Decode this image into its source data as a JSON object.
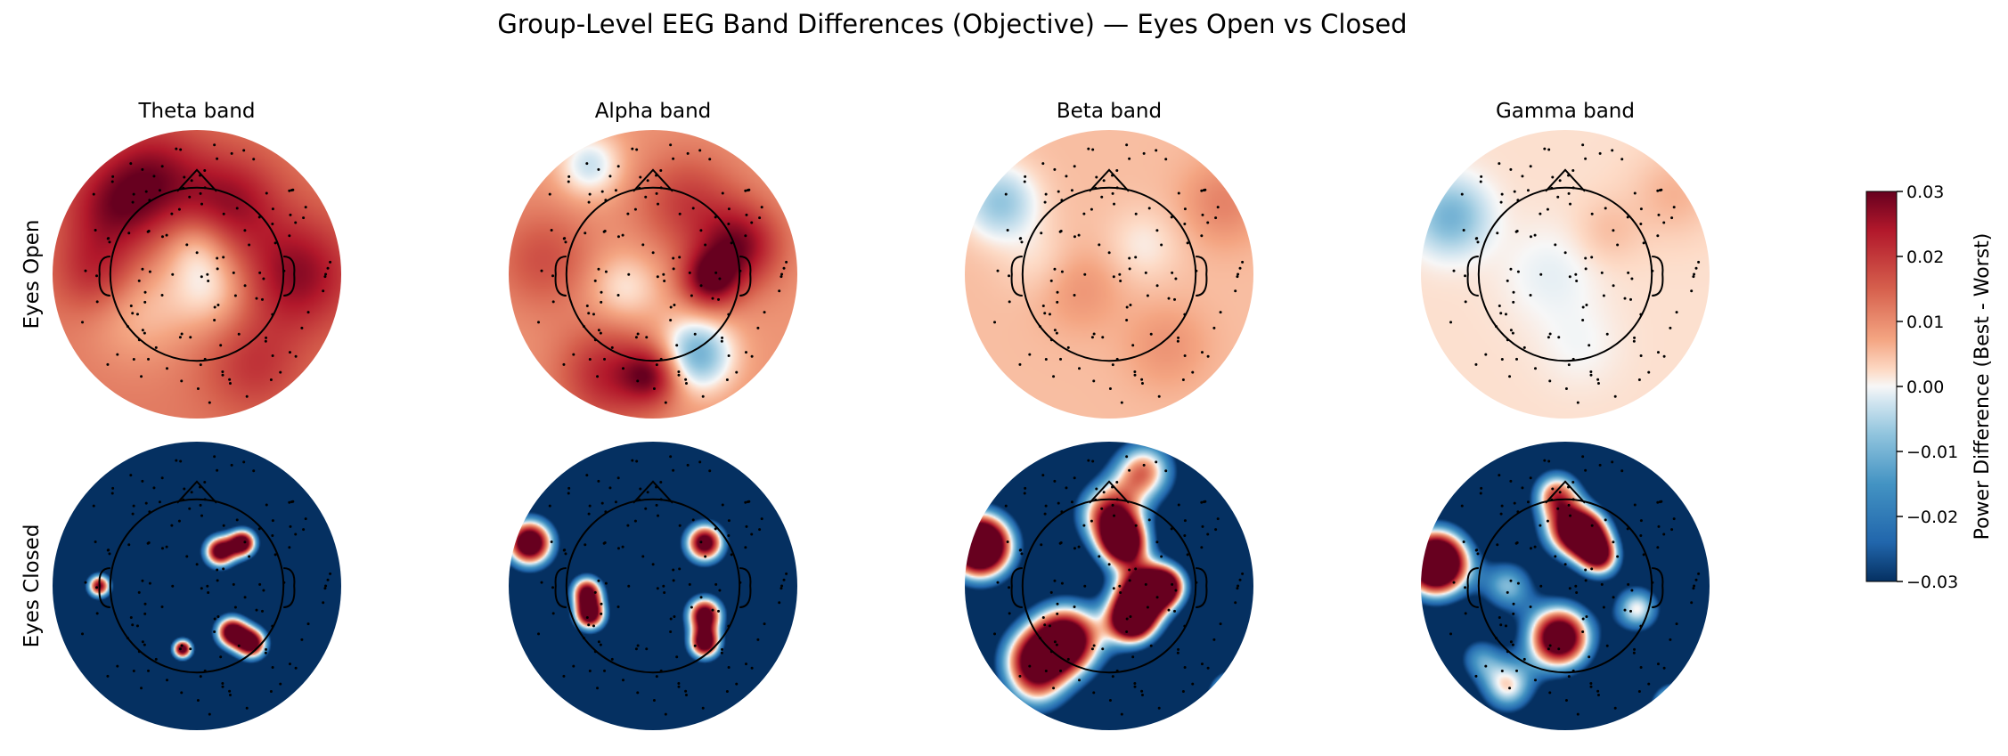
{
  "chart_data": {
    "type": "heatmap",
    "subtype": "eeg-topomap-grid",
    "title": "Group-Level EEG Band Differences (Objective) — Eyes Open vs Closed",
    "columns": [
      "Theta band",
      "Alpha band",
      "Beta band",
      "Gamma band"
    ],
    "rows": [
      "Eyes Open",
      "Eyes Closed"
    ],
    "colormap": "RdBu_r",
    "colors": {
      "low": "#0b3a6b",
      "mid": "#f7f7f7",
      "high": "#8a0b1f"
    },
    "colorbar": {
      "label": "Power Difference (Best - Worst)",
      "range": [
        -0.03,
        0.03
      ],
      "ticks": [
        {
          "value": 0.03,
          "label": "0.03"
        },
        {
          "value": 0.02,
          "label": "0.02"
        },
        {
          "value": 0.01,
          "label": "0.01"
        },
        {
          "value": 0.0,
          "label": "0.00"
        },
        {
          "value": -0.01,
          "label": "−0.01"
        },
        {
          "value": -0.02,
          "label": "−0.02"
        },
        {
          "value": -0.03,
          "label": "−0.03"
        }
      ]
    },
    "panels": [
      {
        "row": "Eyes Open",
        "band": "Theta band",
        "base": 0.012,
        "blobs": [
          [
            0.35,
            0.16,
            0.13,
            0.014
          ],
          [
            0.2,
            0.28,
            0.12,
            0.012
          ],
          [
            0.62,
            0.25,
            0.12,
            0.013
          ],
          [
            0.85,
            0.5,
            0.14,
            0.015
          ],
          [
            0.3,
            0.62,
            0.13,
            -0.007
          ],
          [
            0.55,
            0.55,
            0.1,
            -0.01
          ],
          [
            0.7,
            0.82,
            0.12,
            0.008
          ],
          [
            0.15,
            0.5,
            0.1,
            0.01
          ],
          [
            0.5,
            0.4,
            0.08,
            -0.008
          ]
        ]
      },
      {
        "row": "Eyes Open",
        "band": "Alpha band",
        "base": 0.009,
        "blobs": [
          [
            0.28,
            0.12,
            0.08,
            -0.012
          ],
          [
            0.62,
            0.25,
            0.12,
            0.01
          ],
          [
            0.8,
            0.4,
            0.1,
            0.018
          ],
          [
            0.7,
            0.52,
            0.07,
            0.02
          ],
          [
            0.65,
            0.78,
            0.09,
            -0.02
          ],
          [
            0.35,
            0.85,
            0.12,
            0.014
          ],
          [
            0.5,
            0.85,
            0.07,
            0.016
          ],
          [
            0.12,
            0.45,
            0.12,
            0.008
          ],
          [
            0.4,
            0.55,
            0.09,
            -0.008
          ]
        ]
      },
      {
        "row": "Eyes Open",
        "band": "Beta band",
        "base": 0.005,
        "blobs": [
          [
            0.12,
            0.25,
            0.09,
            -0.012
          ],
          [
            0.9,
            0.25,
            0.1,
            0.006
          ],
          [
            0.4,
            0.55,
            0.1,
            0.004
          ],
          [
            0.62,
            0.4,
            0.09,
            -0.004
          ],
          [
            0.25,
            0.45,
            0.09,
            -0.003
          ],
          [
            0.7,
            0.75,
            0.1,
            0.004
          ]
        ]
      },
      {
        "row": "Eyes Open",
        "band": "Gamma band",
        "base": 0.002,
        "blobs": [
          [
            0.1,
            0.3,
            0.09,
            -0.012
          ],
          [
            0.88,
            0.22,
            0.1,
            0.004
          ],
          [
            0.45,
            0.5,
            0.12,
            -0.003
          ],
          [
            0.65,
            0.35,
            0.08,
            0.003
          ],
          [
            0.55,
            0.75,
            0.1,
            -0.002
          ]
        ]
      },
      {
        "row": "Eyes Closed",
        "band": "Theta band",
        "base": -0.05,
        "blobs": [
          [
            0.58,
            0.38,
            0.04,
            0.09
          ],
          [
            0.66,
            0.35,
            0.035,
            0.09
          ],
          [
            0.62,
            0.66,
            0.04,
            0.09
          ],
          [
            0.69,
            0.7,
            0.04,
            0.09
          ],
          [
            0.45,
            0.72,
            0.025,
            0.09
          ],
          [
            0.16,
            0.5,
            0.03,
            0.08
          ]
        ]
      },
      {
        "row": "Eyes Closed",
        "band": "Alpha band",
        "base": -0.05,
        "blobs": [
          [
            0.07,
            0.35,
            0.06,
            0.1
          ],
          [
            0.27,
            0.52,
            0.04,
            0.08
          ],
          [
            0.28,
            0.6,
            0.04,
            0.09
          ],
          [
            0.68,
            0.35,
            0.05,
            0.09
          ],
          [
            0.68,
            0.6,
            0.045,
            0.09
          ],
          [
            0.68,
            0.7,
            0.04,
            0.09
          ]
        ]
      },
      {
        "row": "Eyes Closed",
        "band": "Beta band",
        "base": -0.05,
        "blobs": [
          [
            0.05,
            0.36,
            0.08,
            0.13
          ],
          [
            0.5,
            0.25,
            0.08,
            0.07
          ],
          [
            0.62,
            0.1,
            0.08,
            0.06
          ],
          [
            0.55,
            0.35,
            0.06,
            0.09
          ],
          [
            0.62,
            0.52,
            0.07,
            0.1
          ],
          [
            0.35,
            0.69,
            0.09,
            0.1
          ],
          [
            0.58,
            0.62,
            0.06,
            0.1
          ],
          [
            0.22,
            0.75,
            0.08,
            0.05
          ],
          [
            0.7,
            0.5,
            0.05,
            0.07
          ],
          [
            0.93,
            0.88,
            0.05,
            0.09
          ],
          [
            0.25,
            0.85,
            0.08,
            0.04
          ]
        ]
      },
      {
        "row": "Eyes Closed",
        "band": "Gamma band",
        "base": -0.05,
        "blobs": [
          [
            0.05,
            0.42,
            0.08,
            0.13
          ],
          [
            0.47,
            0.18,
            0.06,
            0.06
          ],
          [
            0.5,
            0.3,
            0.07,
            0.05
          ],
          [
            0.57,
            0.32,
            0.06,
            0.09
          ],
          [
            0.62,
            0.4,
            0.05,
            0.07
          ],
          [
            0.48,
            0.68,
            0.08,
            0.1
          ],
          [
            0.3,
            0.5,
            0.07,
            0.04
          ],
          [
            0.75,
            0.58,
            0.06,
            0.05
          ],
          [
            0.2,
            0.75,
            0.06,
            0.03
          ],
          [
            0.3,
            0.85,
            0.07,
            0.05
          ],
          [
            0.88,
            0.92,
            0.05,
            0.08
          ]
        ]
      }
    ]
  }
}
